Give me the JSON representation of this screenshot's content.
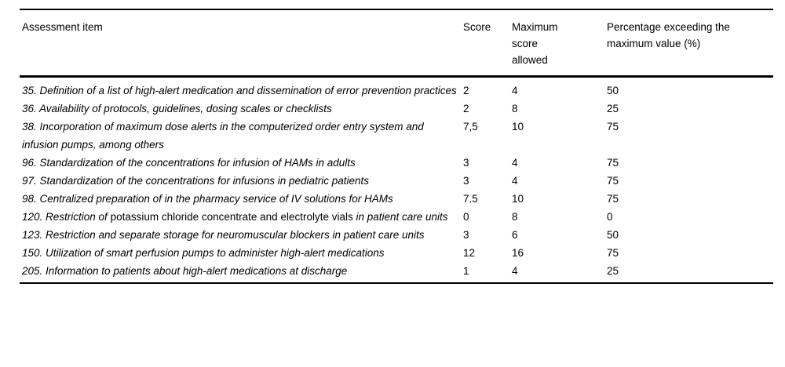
{
  "colors": {
    "background": "#ffffff",
    "text": "#000000",
    "rule": "#000000"
  },
  "table": {
    "headers": [
      "Assessment item",
      "Score",
      "Maximum score allowed",
      "Percentage exceeding the maximum value (%)"
    ],
    "rows": [
      {
        "item_segments": [
          {
            "text": "35. Definition of a list of high-alert medication and dissemination of error prevention practices",
            "italic": true
          }
        ],
        "score": "2",
        "max_score": "4",
        "percentage": "50"
      },
      {
        "item_segments": [
          {
            "text": "36. Availability of protocols, guidelines, dosing scales or checklists",
            "italic": true
          }
        ],
        "score": "2",
        "max_score": "8",
        "percentage": "25"
      },
      {
        "item_segments": [
          {
            "text": "38. Incorporation of maximum dose alerts in the computerized order entry system and infusion pumps, among others",
            "italic": true
          }
        ],
        "score": "7,5",
        "max_score": "10",
        "percentage": "75"
      },
      {
        "item_segments": [
          {
            "text": "96. Standardization of the concentrations for infusion of HAMs in adults",
            "italic": true
          }
        ],
        "score": "3",
        "max_score": "4",
        "percentage": "75"
      },
      {
        "item_segments": [
          {
            "text": "97. Standardization of the concentrations for infusions in pediatric patients",
            "italic": true
          }
        ],
        "score": "3",
        "max_score": "4",
        "percentage": "75"
      },
      {
        "item_segments": [
          {
            "text": "98. Centralized preparation of in the pharmacy service of IV solutions for HAMs",
            "italic": true
          }
        ],
        "score": "7.5",
        "max_score": "10",
        "percentage": "75"
      },
      {
        "item_segments": [
          {
            "text": "120. Restriction of ",
            "italic": true
          },
          {
            "text": "potassium chloride concentrate and electrolyte vials ",
            "italic": false
          },
          {
            "text": "in patient care units",
            "italic": true
          }
        ],
        "score": "0",
        "max_score": "8",
        "percentage": "0"
      },
      {
        "item_segments": [
          {
            "text": "123. Restriction and separate storage for neuromuscular blockers in patient care units",
            "italic": true
          }
        ],
        "score": "3",
        "max_score": "6",
        "percentage": "50"
      },
      {
        "item_segments": [
          {
            "text": "150. Utilization of smart perfusion pumps to administer high-alert medications",
            "italic": true
          }
        ],
        "score": "12",
        "max_score": "16",
        "percentage": "75"
      },
      {
        "item_segments": [
          {
            "text": "205. Information to patients about high-alert medications at discharge",
            "italic": true
          }
        ],
        "score": "1",
        "max_score": "4",
        "percentage": "25"
      }
    ]
  }
}
